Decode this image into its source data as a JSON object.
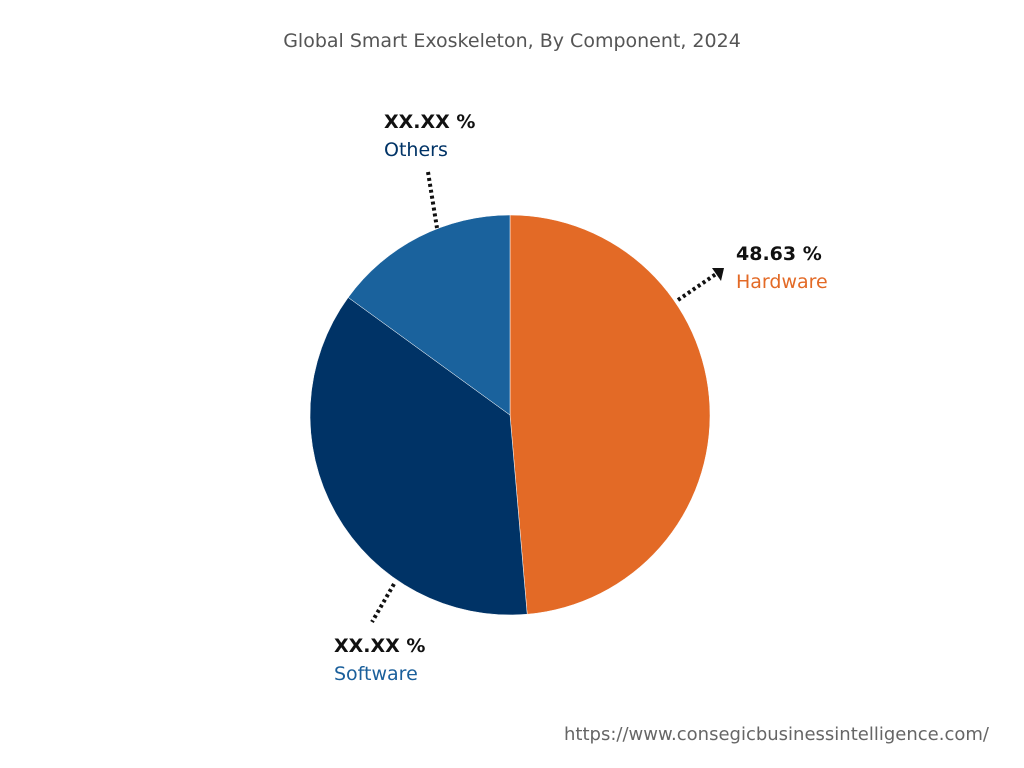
{
  "chart_data": {
    "type": "pie",
    "title": "Global Smart Exoskeleton, By Component, 2024",
    "slices": [
      {
        "label": "Hardware",
        "value": 48.63,
        "value_label": "48.63 %",
        "color": "#E36A26",
        "text_color": "#E36A26"
      },
      {
        "label": "Software",
        "value": 36.37,
        "value_label": "XX.XX %",
        "color": "#003366",
        "text_color": "#1A5F9B"
      },
      {
        "label": "Others",
        "value": 15.0,
        "value_label": "XX.XX %",
        "color": "#1A629D",
        "text_color": "#003366"
      }
    ],
    "start_angle": "top, clockwise"
  },
  "footer": {
    "url": "https://www.consegicbusinessintelligence.com/"
  }
}
